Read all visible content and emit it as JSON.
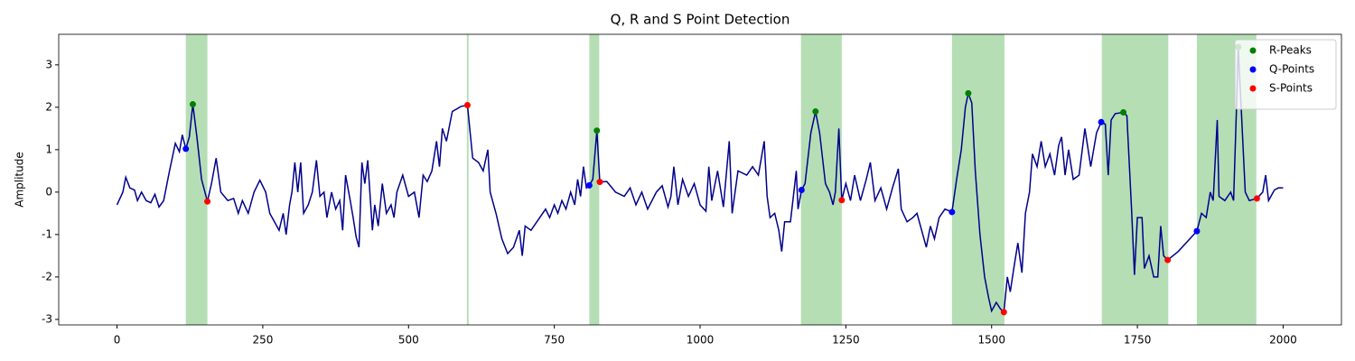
{
  "chart_data": {
    "type": "line",
    "title": "Q, R and S Point Detection",
    "ylabel": "Amplitude",
    "xlim": [
      -100,
      2100
    ],
    "ylim": [
      -3.13,
      3.72
    ],
    "xticks": [
      0,
      250,
      500,
      750,
      1000,
      1250,
      1500,
      1750,
      2000
    ],
    "yticks": [
      -3,
      -2,
      -1,
      0,
      1,
      2,
      3
    ],
    "legend": "upper right",
    "span_color": "#2ca02c",
    "spans": [
      [
        118,
        155
      ],
      [
        600,
        603
      ],
      [
        810,
        827
      ],
      [
        1173,
        1243
      ],
      [
        1432,
        1522
      ],
      [
        1689,
        1803
      ],
      [
        1852,
        1954
      ]
    ],
    "x": [
      0,
      10,
      15,
      22,
      30,
      35,
      42,
      50,
      58,
      65,
      72,
      80,
      90,
      100,
      107,
      112,
      118,
      124,
      130,
      137,
      145,
      155,
      162,
      170,
      178,
      190,
      200,
      208,
      215,
      225,
      235,
      245,
      255,
      262,
      270,
      278,
      285,
      290,
      296,
      300,
      305,
      310,
      315,
      320,
      328,
      335,
      342,
      348,
      355,
      360,
      368,
      375,
      382,
      387,
      392,
      400,
      405,
      410,
      415,
      420,
      425,
      430,
      438,
      442,
      448,
      455,
      462,
      470,
      475,
      480,
      490,
      500,
      510,
      518,
      525,
      532,
      540,
      548,
      553,
      558,
      565,
      575,
      590,
      601,
      610,
      620,
      628,
      636,
      640,
      650,
      660,
      670,
      680,
      690,
      695,
      700,
      710,
      720,
      735,
      742,
      750,
      756,
      763,
      770,
      778,
      785,
      790,
      795,
      800,
      805,
      810,
      816,
      823,
      828,
      840,
      855,
      870,
      880,
      890,
      900,
      910,
      925,
      935,
      945,
      950,
      955,
      962,
      970,
      980,
      990,
      1000,
      1010,
      1015,
      1020,
      1030,
      1040,
      1050,
      1055,
      1065,
      1080,
      1090,
      1100,
      1110,
      1115,
      1120,
      1128,
      1135,
      1140,
      1145,
      1155,
      1165,
      1168,
      1174,
      1180,
      1190,
      1198,
      1205,
      1215,
      1222,
      1228,
      1232,
      1238,
      1243,
      1250,
      1258,
      1265,
      1275,
      1285,
      1292,
      1300,
      1310,
      1320,
      1330,
      1340,
      1345,
      1355,
      1365,
      1372,
      1380,
      1388,
      1395,
      1402,
      1410,
      1420,
      1432,
      1440,
      1448,
      1455,
      1460,
      1466,
      1472,
      1480,
      1488,
      1495,
      1500,
      1508,
      1515,
      1521,
      1527,
      1532,
      1538,
      1545,
      1552,
      1558,
      1565,
      1570,
      1578,
      1585,
      1592,
      1600,
      1608,
      1615,
      1620,
      1626,
      1632,
      1640,
      1650,
      1660,
      1670,
      1680,
      1688,
      1695,
      1700,
      1705,
      1712,
      1726,
      1732,
      1740,
      1745,
      1750,
      1758,
      1762,
      1770,
      1778,
      1785,
      1790,
      1795,
      1802,
      1820,
      1840,
      1852,
      1860,
      1868,
      1875,
      1880,
      1887,
      1890,
      1900,
      1910,
      1915,
      1920,
      1923,
      1928,
      1935,
      1942,
      1955,
      1965,
      1970,
      1975,
      1985,
      1992,
      2000
    ],
    "series": [
      {
        "color": "#00008b",
        "values": [
          -0.3,
          0.0,
          0.35,
          0.1,
          0.05,
          -0.2,
          0.0,
          -0.2,
          -0.25,
          -0.05,
          -0.35,
          -0.2,
          0.5,
          1.15,
          0.95,
          1.35,
          1.02,
          1.3,
          2.07,
          1.3,
          0.3,
          -0.22,
          0.2,
          0.8,
          0.0,
          -0.2,
          -0.15,
          -0.5,
          -0.2,
          -0.5,
          0.0,
          0.28,
          0.0,
          -0.5,
          -0.7,
          -0.9,
          -0.5,
          -1.0,
          -0.3,
          0.0,
          0.7,
          0.0,
          0.7,
          -0.5,
          -0.3,
          0.0,
          0.75,
          -0.1,
          0.0,
          -0.6,
          0.0,
          -0.4,
          -0.2,
          -0.9,
          0.4,
          -0.2,
          -0.6,
          -1.05,
          -1.3,
          0.7,
          0.2,
          0.75,
          -0.9,
          -0.3,
          -0.8,
          0.2,
          -0.5,
          -0.3,
          -0.6,
          0.0,
          0.4,
          -0.1,
          0.0,
          -0.6,
          0.4,
          0.25,
          0.5,
          1.2,
          0.6,
          1.5,
          1.2,
          1.9,
          2.02,
          2.05,
          0.8,
          0.7,
          0.5,
          1.0,
          0.0,
          -0.5,
          -1.1,
          -1.45,
          -1.3,
          -0.9,
          -1.5,
          -0.8,
          -0.9,
          -0.7,
          -0.4,
          -0.6,
          -0.3,
          -0.5,
          -0.2,
          -0.4,
          0.0,
          -0.3,
          0.3,
          -0.1,
          0.6,
          0.1,
          0.16,
          0.3,
          1.45,
          0.24,
          0.25,
          0.0,
          -0.1,
          0.1,
          -0.3,
          0.0,
          -0.4,
          0.0,
          0.15,
          -0.35,
          -0.1,
          0.6,
          -0.3,
          0.3,
          -0.1,
          0.2,
          -0.3,
          -0.45,
          0.6,
          -0.2,
          0.5,
          -0.35,
          1.2,
          -0.5,
          0.5,
          0.4,
          0.6,
          0.4,
          1.2,
          -0.1,
          -0.6,
          -0.5,
          -0.9,
          -1.4,
          -0.7,
          -0.7,
          0.5,
          -0.4,
          0.05,
          0.2,
          1.4,
          1.9,
          1.4,
          0.2,
          0.0,
          -0.3,
          0.0,
          1.5,
          -0.19,
          0.2,
          -0.2,
          0.4,
          -0.2,
          0.3,
          0.7,
          -0.2,
          0.1,
          -0.4,
          0.1,
          0.55,
          -0.4,
          -0.7,
          -0.6,
          -0.5,
          -0.9,
          -1.3,
          -0.8,
          -1.1,
          -0.6,
          -0.4,
          -0.47,
          0.3,
          1.0,
          2.0,
          2.33,
          2.1,
          0.5,
          -1.0,
          -2.0,
          -2.5,
          -2.8,
          -2.6,
          -2.75,
          -2.83,
          -2.0,
          -2.35,
          -1.8,
          -1.2,
          -1.9,
          -0.5,
          0.0,
          0.9,
          0.6,
          1.2,
          0.6,
          0.9,
          0.4,
          1.1,
          1.3,
          0.4,
          1.0,
          0.3,
          0.4,
          1.5,
          0.6,
          1.4,
          1.65,
          1.6,
          0.4,
          1.7,
          1.85,
          1.88,
          1.8,
          -0.4,
          -1.95,
          -0.6,
          -0.6,
          -1.8,
          -1.5,
          -2.0,
          -2.0,
          -0.8,
          -1.5,
          -1.6,
          -1.4,
          -1.1,
          -0.92,
          -0.5,
          -0.6,
          0.0,
          -0.2,
          1.7,
          -0.1,
          -0.2,
          0.0,
          -0.2,
          2.0,
          3.42,
          2.0,
          0.0,
          -0.2,
          -0.15,
          0.0,
          0.4,
          -0.2,
          0.05,
          0.1,
          0.1
        ]
      },
      {
        "name": "R-Peaks",
        "type": "scatter",
        "color": "#008000",
        "x": [
          130,
          823,
          1198,
          1460,
          1726,
          1923
        ],
        "values": [
          2.07,
          1.45,
          1.9,
          2.33,
          1.88,
          3.42
        ]
      },
      {
        "name": "Q-Points",
        "type": "scatter",
        "color": "#0000ff",
        "x": [
          118,
          810,
          1174,
          1432,
          1688,
          1852
        ],
        "values": [
          1.02,
          0.16,
          0.05,
          -0.47,
          1.65,
          -0.92
        ]
      },
      {
        "name": "S-Points",
        "type": "scatter",
        "color": "#ff0000",
        "x": [
          155,
          601,
          828,
          1243,
          1521,
          1802,
          1955
        ],
        "values": [
          -0.22,
          2.05,
          0.24,
          -0.19,
          -2.83,
          -1.6,
          -0.15
        ]
      }
    ]
  }
}
